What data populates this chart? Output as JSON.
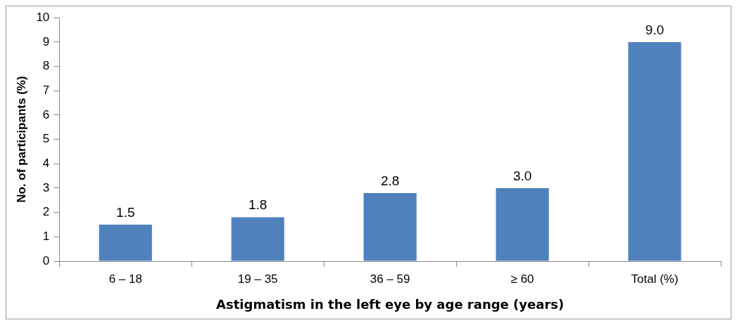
{
  "chart_data": {
    "type": "bar",
    "xlabel": "Astigmatism in the left eye by age range (years)",
    "ylabel": "No. of participants (%)",
    "categories": [
      "6 – 18",
      "19 – 35",
      "36 – 59",
      "≥ 60",
      "Total (%)"
    ],
    "values": [
      1.5,
      1.8,
      2.8,
      3.0,
      9.0
    ],
    "value_labels": [
      "1.5",
      "1.8",
      "2.8",
      "3.0",
      "9.0"
    ],
    "color": "#4f81bd",
    "ylim": [
      0,
      10
    ],
    "yticks": [
      0,
      1,
      2,
      3,
      4,
      5,
      6,
      7,
      8,
      9,
      10
    ],
    "grid": false,
    "legend": false
  }
}
